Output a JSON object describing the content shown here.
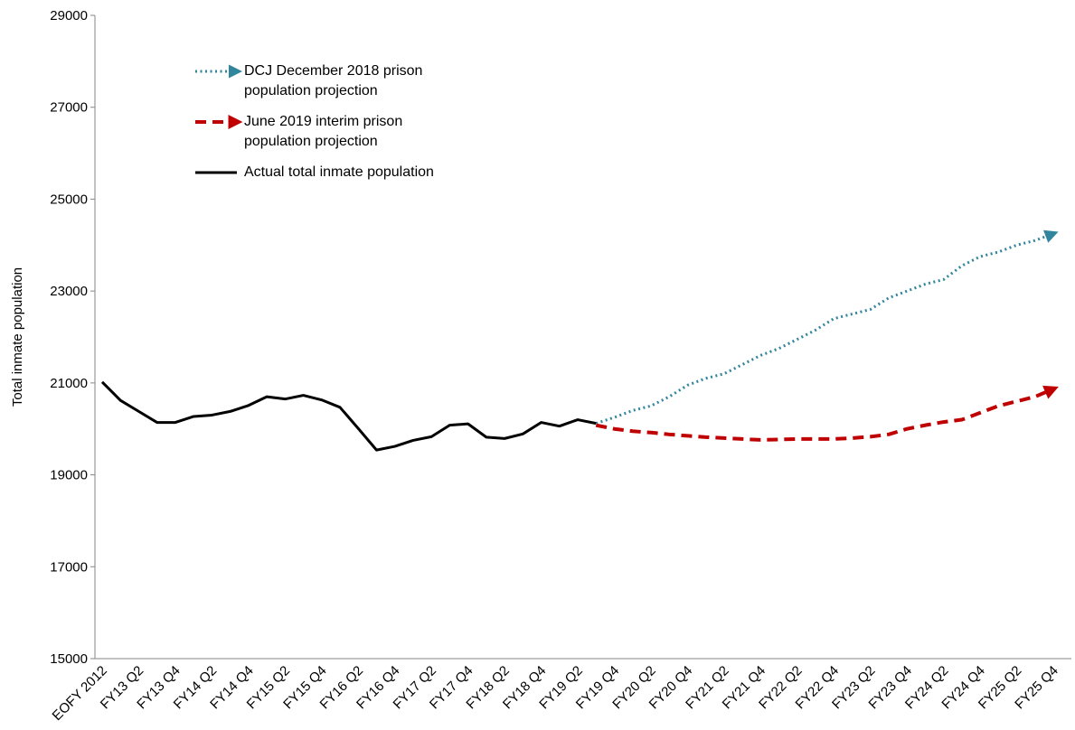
{
  "chart_data": {
    "type": "line",
    "y_label": "Total inmate population",
    "categories": [
      "EOFY 2012",
      null,
      "FY13 Q2",
      null,
      "FY13 Q4",
      null,
      "FY14 Q2",
      null,
      "FY14 Q4",
      null,
      "FY15 Q2",
      null,
      "FY15 Q4",
      null,
      "FY16 Q2",
      null,
      "FY16 Q4",
      null,
      "FY17 Q2",
      null,
      "FY17 Q4",
      null,
      "FY18 Q2",
      null,
      "FY18 Q4",
      null,
      "FY19 Q2",
      null,
      "FY19 Q4",
      null,
      "FY20 Q2",
      null,
      "FY20 Q4",
      null,
      "FY21 Q2",
      null,
      "FY21 Q4",
      null,
      "FY22 Q2",
      null,
      "FY22 Q4",
      null,
      "FY23 Q2",
      null,
      "FY23 Q4",
      null,
      "FY24 Q2",
      null,
      "FY24 Q4",
      null,
      "FY25 Q2",
      null,
      "FY25 Q4"
    ],
    "series": [
      {
        "name": "DCJ December 2018 prison population projection",
        "color": "#31859c",
        "dash": "dotted",
        "arrow": true,
        "values": [
          null,
          null,
          null,
          null,
          null,
          null,
          null,
          null,
          null,
          null,
          null,
          null,
          null,
          null,
          null,
          null,
          null,
          null,
          null,
          null,
          null,
          null,
          null,
          null,
          null,
          null,
          null,
          20120,
          20250,
          20400,
          20500,
          20700,
          20950,
          21100,
          21200,
          21400,
          21600,
          21750,
          21950,
          22150,
          22400,
          22500,
          22600,
          22850,
          23000,
          23150,
          23250,
          23550,
          23750,
          23850,
          24000,
          24100,
          24250
        ]
      },
      {
        "name": "June 2019 interim prison population projection",
        "color": "#c00000",
        "dash": "dashed",
        "arrow": true,
        "values": [
          null,
          null,
          null,
          null,
          null,
          null,
          null,
          null,
          null,
          null,
          null,
          null,
          null,
          null,
          null,
          null,
          null,
          null,
          null,
          null,
          null,
          null,
          null,
          null,
          null,
          null,
          null,
          20080,
          20000,
          19950,
          19920,
          19880,
          19850,
          19820,
          19800,
          19780,
          19760,
          19770,
          19780,
          19780,
          19780,
          19800,
          19830,
          19880,
          20000,
          20080,
          20150,
          20200,
          20350,
          20500,
          20600,
          20700,
          20870
        ]
      },
      {
        "name": "Actual total inmate population",
        "color": "#000000",
        "dash": "solid",
        "arrow": false,
        "values": [
          21020,
          20620,
          20380,
          20140,
          20140,
          20270,
          20300,
          20380,
          20510,
          20700,
          20650,
          20730,
          20630,
          20470,
          20010,
          19540,
          19620,
          19750,
          19830,
          20080,
          20110,
          19820,
          19790,
          19890,
          20140,
          20060,
          20200,
          20120,
          null,
          null,
          null,
          null,
          null,
          null,
          null,
          null,
          null,
          null,
          null,
          null,
          null,
          null,
          null,
          null,
          null,
          null,
          null,
          null,
          null,
          null,
          null,
          null,
          null
        ]
      }
    ],
    "ylim": [
      15000,
      29000
    ],
    "yticks": [
      15000,
      17000,
      19000,
      21000,
      23000,
      25000,
      27000,
      29000
    ],
    "grid": false
  }
}
